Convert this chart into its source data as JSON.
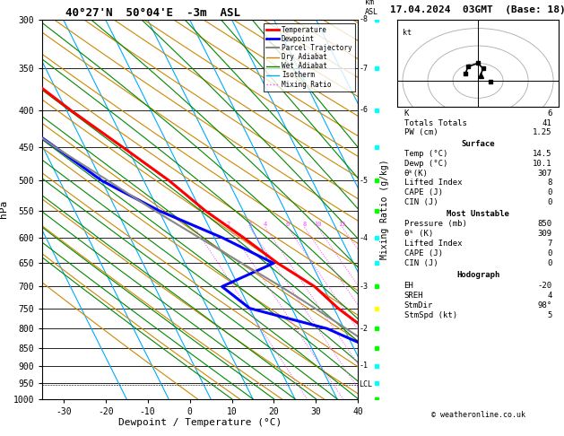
{
  "title_left": "40°27'N  50°04'E  -3m  ASL",
  "title_right": "17.04.2024  03GMT  (Base: 18)",
  "xlabel": "Dewpoint / Temperature (°C)",
  "ylabel_left": "hPa",
  "temp_range": [
    -35,
    40
  ],
  "temp_ticks": [
    -30,
    -20,
    -10,
    0,
    10,
    20,
    30,
    40
  ],
  "pressure_levels": [
    300,
    350,
    400,
    450,
    500,
    550,
    600,
    650,
    700,
    750,
    800,
    850,
    900,
    950,
    1000
  ],
  "km_ticks": [
    8,
    7,
    6,
    5,
    4,
    3,
    2,
    1
  ],
  "km_pressures": [
    300,
    350,
    400,
    500,
    600,
    700,
    800,
    900
  ],
  "lcl_pressure": 955,
  "temp_profile_p": [
    1000,
    950,
    900,
    850,
    800,
    750,
    700,
    650,
    600,
    550,
    500,
    450,
    400,
    350,
    300
  ],
  "temp_profile_t": [
    14.5,
    14.2,
    12.0,
    8.0,
    5.0,
    1.0,
    -2.0,
    -8.0,
    -13.0,
    -19.0,
    -24.0,
    -31.0,
    -39.0,
    -47.0,
    -54.0
  ],
  "dewp_profile_p": [
    1000,
    950,
    900,
    850,
    800,
    750,
    700,
    650,
    600,
    550,
    500,
    450,
    400,
    350,
    300
  ],
  "dewp_profile_t": [
    10.1,
    9.5,
    5.0,
    4.0,
    -4.0,
    -20.0,
    -24.0,
    -9.0,
    -18.0,
    -30.0,
    -40.0,
    -47.0,
    -55.0,
    -58.0,
    -64.0
  ],
  "parcel_profile_p": [
    1000,
    950,
    900,
    850,
    800,
    750,
    700,
    650,
    600,
    550,
    500,
    450,
    400,
    350,
    300
  ],
  "parcel_profile_t": [
    14.5,
    12.0,
    8.5,
    5.0,
    0.5,
    -4.5,
    -10.0,
    -16.5,
    -23.5,
    -31.0,
    -38.5,
    -47.0,
    -55.5,
    -64.0,
    -72.5
  ],
  "temp_color": "#ff0000",
  "dewp_color": "#0000ff",
  "parcel_color": "#888888",
  "dry_adiabat_color": "#cc8800",
  "wet_adiabat_color": "#008800",
  "isotherm_color": "#00aaff",
  "mixing_color": "#ff44ff",
  "hodograph_u": [
    1,
    2,
    0,
    -4,
    -5
  ],
  "hodograph_v": [
    3,
    7,
    10,
    8,
    4
  ],
  "stats": {
    "K": 6,
    "Totals_Totals": 41,
    "PW_cm": 1.25,
    "Surface_Temp": 14.5,
    "Surface_Dewp": 10.1,
    "Surface_ThetaE": 307,
    "Surface_LiftedIndex": 8,
    "Surface_CAPE": 0,
    "Surface_CIN": 0,
    "MU_Pressure": 850,
    "MU_ThetaE": 309,
    "MU_LiftedIndex": 7,
    "MU_CAPE": 0,
    "MU_CIN": 0,
    "EH": -20,
    "SREH": 4,
    "StmDir": 98,
    "StmSpd": 5
  },
  "copyright": "© weatheronline.co.uk"
}
